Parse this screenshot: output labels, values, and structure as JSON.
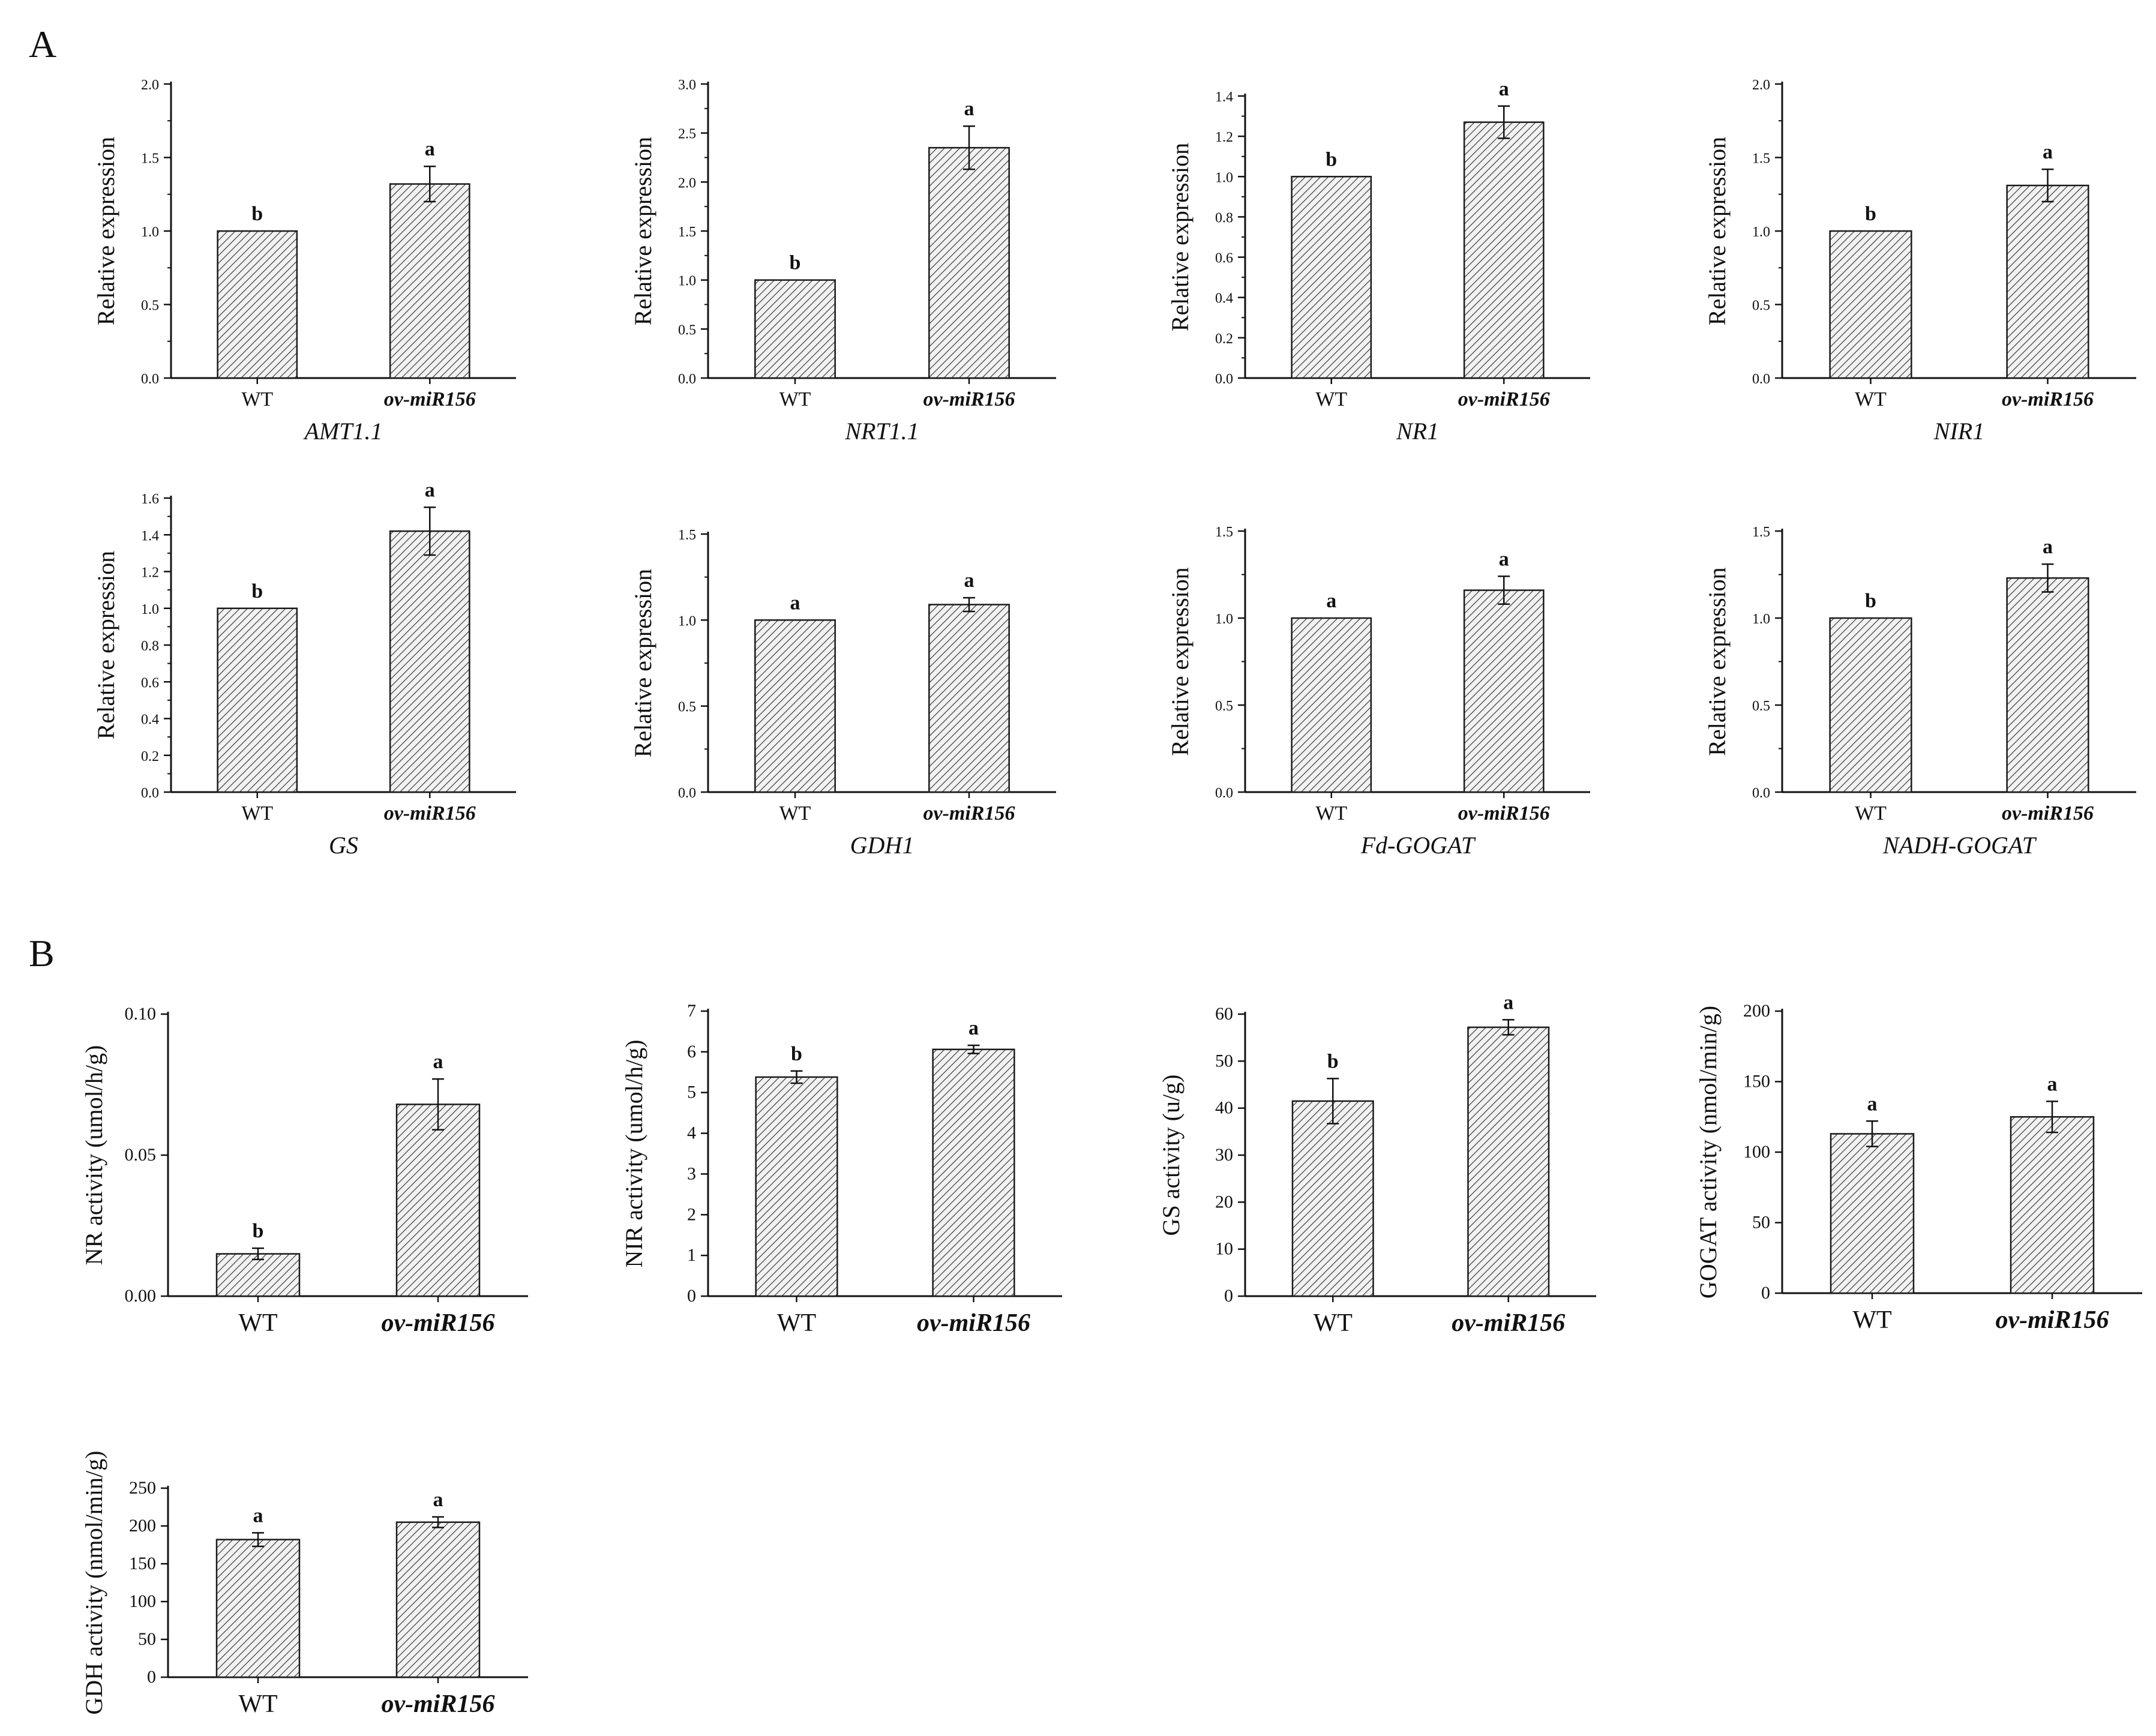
{
  "figure": {
    "panel_labels": [
      "A",
      "B"
    ]
  },
  "chart_data": [
    {
      "panel": "A",
      "type": "bar",
      "title": "AMT1.1",
      "xlabel": "AMT1.1",
      "ylabel": "Relative expression",
      "categories": [
        "WT",
        "ov-miR156"
      ],
      "values": [
        1.0,
        1.32
      ],
      "errors": [
        0,
        0.12
      ],
      "significance": [
        "b",
        "a"
      ],
      "ylim": [
        0,
        2.0
      ],
      "yticks": [
        "0.0",
        "0.5",
        "1.0",
        "1.5",
        "2.0"
      ]
    },
    {
      "panel": "A",
      "type": "bar",
      "title": "NRT1.1",
      "xlabel": "NRT1.1",
      "ylabel": "Relative expression",
      "categories": [
        "WT",
        "ov-miR156"
      ],
      "values": [
        1.0,
        2.35
      ],
      "errors": [
        0,
        0.22
      ],
      "significance": [
        "b",
        "a"
      ],
      "ylim": [
        0,
        3.0
      ],
      "yticks": [
        "0.0",
        "0.5",
        "1.0",
        "1.5",
        "2.0",
        "2.5",
        "3.0"
      ]
    },
    {
      "panel": "A",
      "type": "bar",
      "title": "NR1",
      "xlabel": "NR1",
      "ylabel": "Relative expression",
      "categories": [
        "WT",
        "ov-miR156"
      ],
      "values": [
        1.0,
        1.27
      ],
      "errors": [
        0,
        0.08
      ],
      "significance": [
        "b",
        "a"
      ],
      "ylim": [
        0,
        1.4
      ],
      "yticks": [
        "0.0",
        "0.2",
        "0.4",
        "0.6",
        "0.8",
        "1.0",
        "1.2",
        "1.4"
      ]
    },
    {
      "panel": "A",
      "type": "bar",
      "title": "NIR1",
      "xlabel": "NIR1",
      "ylabel": "Relative expression",
      "categories": [
        "WT",
        "ov-miR156"
      ],
      "values": [
        1.0,
        1.31
      ],
      "errors": [
        0,
        0.11
      ],
      "significance": [
        "b",
        "a"
      ],
      "ylim": [
        0,
        2.0
      ],
      "yticks": [
        "0.0",
        "0.5",
        "1.0",
        "1.5",
        "2.0"
      ]
    },
    {
      "panel": "A",
      "type": "bar",
      "title": "GS",
      "xlabel": "GS",
      "ylabel": "Relative expression",
      "categories": [
        "WT",
        "ov-miR156"
      ],
      "values": [
        1.0,
        1.42
      ],
      "errors": [
        0,
        0.13
      ],
      "significance": [
        "b",
        "a"
      ],
      "ylim": [
        0,
        1.6
      ],
      "yticks": [
        "0.0",
        "0.2",
        "0.4",
        "0.6",
        "0.8",
        "1.0",
        "1.2",
        "1.4",
        "1.6"
      ]
    },
    {
      "panel": "A",
      "type": "bar",
      "title": "GDH1",
      "xlabel": "GDH1",
      "ylabel": "Relative expression",
      "categories": [
        "WT",
        "ov-miR156"
      ],
      "values": [
        1.0,
        1.09
      ],
      "errors": [
        0,
        0.04
      ],
      "significance": [
        "a",
        "a"
      ],
      "ylim": [
        0,
        1.5
      ],
      "yticks": [
        "0.0",
        "0.5",
        "1.0",
        "1.5"
      ]
    },
    {
      "panel": "A",
      "type": "bar",
      "title": "Fd-GOGAT",
      "xlabel": "Fd-GOGAT",
      "ylabel": "Relative expression",
      "categories": [
        "WT",
        "ov-miR156"
      ],
      "values": [
        1.0,
        1.16
      ],
      "errors": [
        0,
        0.08
      ],
      "significance": [
        "a",
        "a"
      ],
      "ylim": [
        0,
        1.5
      ],
      "yticks": [
        "0.0",
        "0.5",
        "1.0",
        "1.5"
      ]
    },
    {
      "panel": "A",
      "type": "bar",
      "title": "NADH-GOGAT",
      "xlabel": "NADH-GOGAT",
      "ylabel": "Relative expression",
      "categories": [
        "WT",
        "ov-miR156"
      ],
      "values": [
        1.0,
        1.23
      ],
      "errors": [
        0,
        0.08
      ],
      "significance": [
        "b",
        "a"
      ],
      "ylim": [
        0,
        1.5
      ],
      "yticks": [
        "0.0",
        "0.5",
        "1.0",
        "1.5"
      ]
    },
    {
      "panel": "B",
      "type": "bar",
      "title": "NR activity",
      "xlabel": "",
      "ylabel": "NR  activity (umol/h/g)",
      "categories": [
        "WT",
        "ov-miR156"
      ],
      "values": [
        0.015,
        0.068
      ],
      "errors": [
        0.002,
        0.009
      ],
      "significance": [
        "b",
        "a"
      ],
      "ylim": [
        0,
        0.1
      ],
      "yticks": [
        "0.00",
        "0.05",
        "0.10"
      ]
    },
    {
      "panel": "B",
      "type": "bar",
      "title": "NIR activity",
      "xlabel": "",
      "ylabel": "NIR  activity (umol/h/g)",
      "categories": [
        "WT",
        "ov-miR156"
      ],
      "values": [
        5.38,
        6.06
      ],
      "errors": [
        0.15,
        0.1
      ],
      "significance": [
        "b",
        "a"
      ],
      "ylim": [
        0,
        7
      ],
      "yticks": [
        "0",
        "1",
        "2",
        "3",
        "4",
        "5",
        "6",
        "7"
      ]
    },
    {
      "panel": "B",
      "type": "bar",
      "title": "GS activity",
      "xlabel": "",
      "ylabel": "GS  activity (u/g)",
      "categories": [
        "WT",
        "ov-miR156"
      ],
      "values": [
        41.5,
        57.2
      ],
      "errors": [
        4.8,
        1.6
      ],
      "significance": [
        "b",
        "a"
      ],
      "ylim": [
        0,
        60
      ],
      "yticks": [
        "0",
        "10",
        "20",
        "30",
        "40",
        "50",
        "60"
      ]
    },
    {
      "panel": "B",
      "type": "bar",
      "title": "GOGAT activity",
      "xlabel": "",
      "ylabel": "GOGAT  activity (nmol/min/g)",
      "categories": [
        "WT",
        "ov-miR156"
      ],
      "values": [
        113,
        125
      ],
      "errors": [
        9,
        11
      ],
      "significance": [
        "a",
        "a"
      ],
      "ylim": [
        0,
        200
      ],
      "yticks": [
        "0",
        "50",
        "100",
        "150",
        "200"
      ]
    },
    {
      "panel": "B",
      "type": "bar",
      "title": "GDH activity",
      "xlabel": "",
      "ylabel": "GDH  activity (nmol/min/g)",
      "categories": [
        "WT",
        "ov-miR156"
      ],
      "values": [
        182,
        205
      ],
      "errors": [
        9,
        7
      ],
      "significance": [
        "a",
        "a"
      ],
      "ylim": [
        0,
        250
      ],
      "yticks": [
        "0",
        "50",
        "100",
        "150",
        "200",
        "250"
      ]
    }
  ]
}
